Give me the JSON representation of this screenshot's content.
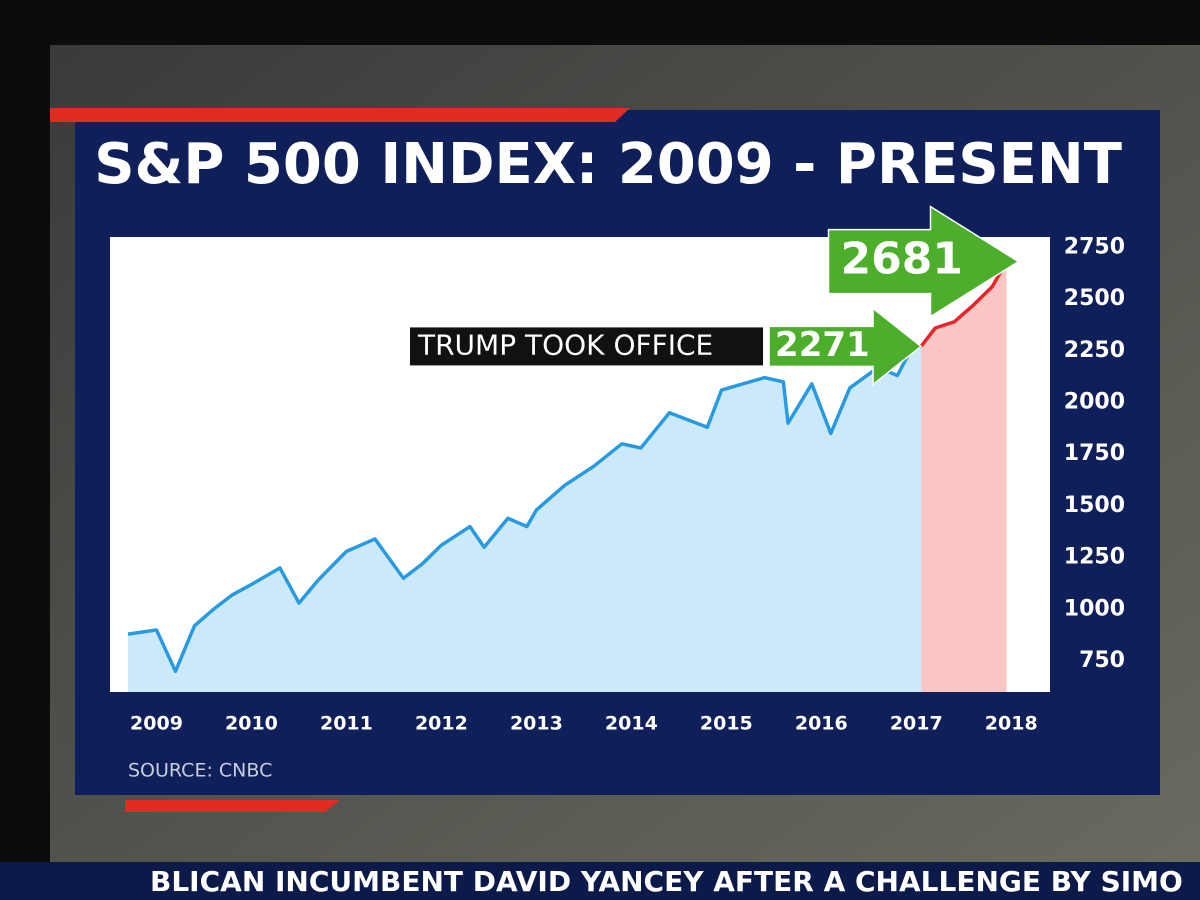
{
  "chart_data": {
    "type": "line",
    "title": "S&P 500 INDEX: 2009 - PRESENT",
    "source": "SOURCE: CNBC",
    "ticker": "BLICAN INCUMBENT DAVID YANCEY AFTER A CHALLENGE BY SIMO",
    "xlim": [
      2008.7,
      2018.25
    ],
    "xticks": [
      2009,
      2010,
      2011,
      2012,
      2013,
      2014,
      2015,
      2016,
      2017,
      2018
    ],
    "ylim": [
      600,
      2800
    ],
    "yticks": [
      750,
      1000,
      1250,
      1500,
      1750,
      2000,
      2250,
      2500,
      2750
    ],
    "fill": true,
    "series": [
      {
        "color": "#2a9ae0",
        "fill_color": "#bfe3f8",
        "x": [
          2008.7,
          2009.0,
          2009.2,
          2009.4,
          2009.6,
          2009.8,
          2010.0,
          2010.3,
          2010.5,
          2010.7,
          2011.0,
          2011.3,
          2011.6,
          2011.8,
          2012.0,
          2012.3,
          2012.45,
          2012.7,
          2012.9,
          2013.0,
          2013.3,
          2013.6,
          2013.9,
          2014.1,
          2014.4,
          2014.8,
          2014.95,
          2015.4,
          2015.6,
          2015.65,
          2015.9,
          2016.1,
          2016.3,
          2016.6,
          2016.8,
          2016.95,
          2017.05
        ],
        "values": [
          880,
          900,
          700,
          920,
          1000,
          1070,
          1120,
          1200,
          1030,
          1140,
          1280,
          1340,
          1150,
          1220,
          1310,
          1400,
          1300,
          1440,
          1400,
          1480,
          1600,
          1690,
          1800,
          1780,
          1950,
          1880,
          2060,
          2120,
          2100,
          1900,
          2090,
          1850,
          2070,
          2170,
          2130,
          2260,
          2271
        ]
      },
      {
        "color": "#e8252a",
        "fill_color": "#f8b8b4",
        "x": [
          2017.05,
          2017.2,
          2017.4,
          2017.6,
          2017.8,
          2017.95
        ],
        "values": [
          2271,
          2360,
          2390,
          2470,
          2560,
          2681
        ]
      }
    ],
    "callouts": [
      {
        "x": 2017.05,
        "value": 2271,
        "label": "TRUMP TOOK OFFICE"
      },
      {
        "x": 2017.95,
        "value": 2681
      }
    ]
  }
}
